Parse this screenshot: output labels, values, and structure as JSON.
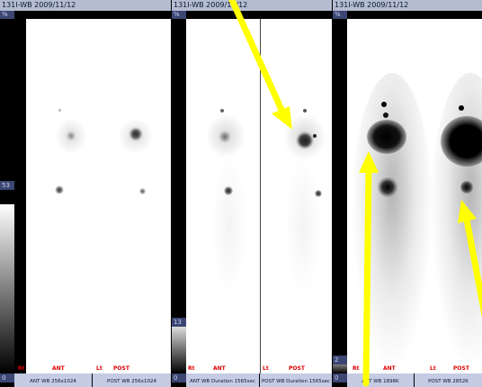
{
  "panels": [
    {
      "header": "131I-WB 2009/11/12",
      "percent_label": "%",
      "scale_max": "53",
      "scale_min": "0",
      "labels": {
        "rt": "Rt",
        "ant": "ANT",
        "lt": "Lt",
        "post": "POST"
      },
      "footers": [
        "ANT WB 256x1024",
        "POST WB 256x1024"
      ]
    },
    {
      "header": "131I-WB 2009/11/12",
      "percent_label": "%",
      "scale_max": "13",
      "scale_min": "0",
      "labels": {
        "rt": "Rt",
        "ant": "ANT",
        "lt": "Lt",
        "post": "POST"
      },
      "footers": [
        "ANT WB Duration 1565sec",
        "POST WB Duration 1565sec"
      ]
    },
    {
      "header": "131I-WB 2009/11/12",
      "percent_label": "%",
      "scale_max": "2",
      "scale_min": "0",
      "labels": {
        "rt": "Rt",
        "ant": "ANT",
        "lt": "Lt",
        "post": "POST"
      },
      "footers": [
        "ANT WB 1898K",
        "POST WB 2852K"
      ]
    }
  ],
  "annotations": {
    "arrow_color": "#ffff00"
  }
}
